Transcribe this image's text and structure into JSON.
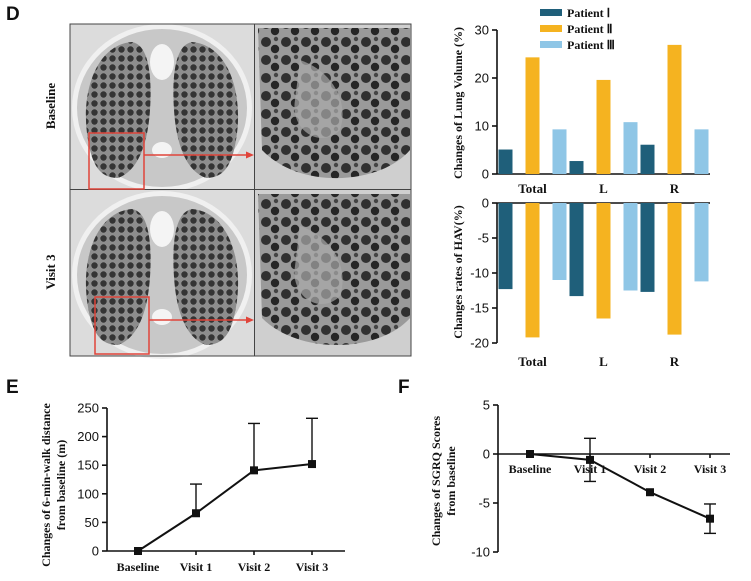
{
  "panels": {
    "D": {
      "letter": "D",
      "ct_labels": [
        "Baseline",
        "Visit 3"
      ]
    },
    "E": {
      "letter": "E"
    },
    "F": {
      "letter": "F"
    }
  },
  "colors": {
    "patient1": "#1f5f7a",
    "patient2": "#f5b320",
    "patient3": "#8fc6e6",
    "highlight_box": "#e0443a",
    "ct_bg": "#d8d8d8"
  },
  "chart_data": [
    {
      "id": "lung-volume",
      "type": "bar",
      "title": "",
      "xlabel": "",
      "ylabel": "Changes of Lung Volume (%)",
      "categories": [
        "Total",
        "L",
        "R"
      ],
      "ylim": [
        0,
        30
      ],
      "yticks": [
        "0",
        "10",
        "20",
        "30"
      ],
      "legend_position": "top-right",
      "series": [
        {
          "name": "Patient Ⅰ",
          "color": "#1f5f7a",
          "values": [
            5.1,
            2.7,
            6.1
          ]
        },
        {
          "name": "Patient Ⅱ",
          "color": "#f5b320",
          "values": [
            24.3,
            19.6,
            26.9
          ]
        },
        {
          "name": "Patient Ⅲ",
          "color": "#8fc6e6",
          "values": [
            9.3,
            10.8,
            9.3
          ]
        }
      ]
    },
    {
      "id": "hav-change",
      "type": "bar",
      "title": "",
      "xlabel": "",
      "ylabel": "Changes rates of HAV(%)",
      "categories": [
        "Total",
        "L",
        "R"
      ],
      "ylim": [
        -20,
        0
      ],
      "yticks": [
        "0",
        "-5",
        "-10",
        "-15",
        "-20"
      ],
      "series": [
        {
          "name": "Patient Ⅰ",
          "color": "#1f5f7a",
          "values": [
            -12.3,
            -13.3,
            -12.7
          ]
        },
        {
          "name": "Patient Ⅱ",
          "color": "#f5b320",
          "values": [
            -19.2,
            -16.5,
            -18.8
          ]
        },
        {
          "name": "Patient Ⅲ",
          "color": "#8fc6e6",
          "values": [
            -11.0,
            -12.5,
            -11.2
          ]
        }
      ]
    },
    {
      "id": "six-min-walk",
      "type": "line",
      "title": "",
      "xlabel": "",
      "ylabel": "Changes of 6-min-walk distance from baseline (m)",
      "ylabel_lines": [
        "Changes of 6-min-walk distance",
        "from baseline (m)"
      ],
      "categories": [
        "Baseline",
        "Visit 1",
        "Visit 2",
        "Visit 3"
      ],
      "ylim": [
        0,
        250
      ],
      "yticks": [
        "0",
        "50",
        "100",
        "150",
        "200",
        "250"
      ],
      "values": [
        0,
        66,
        141,
        152
      ],
      "error_upper": [
        0,
        51,
        82,
        80
      ]
    },
    {
      "id": "sgrq",
      "type": "line",
      "title": "",
      "xlabel": "",
      "ylabel": "Changes of SGRQ Scores from baseline",
      "ylabel_lines": [
        "Changes of SGRQ Scores",
        "from baseline"
      ],
      "categories": [
        "Baseline",
        "Visit 1",
        "Visit 2",
        "Visit 3"
      ],
      "ylim": [
        -10,
        5
      ],
      "yticks": [
        "5",
        "0",
        "-5",
        "-10"
      ],
      "values": [
        0,
        -0.6,
        -3.9,
        -6.6
      ],
      "error": [
        0,
        2.2,
        0,
        1.5
      ]
    }
  ]
}
